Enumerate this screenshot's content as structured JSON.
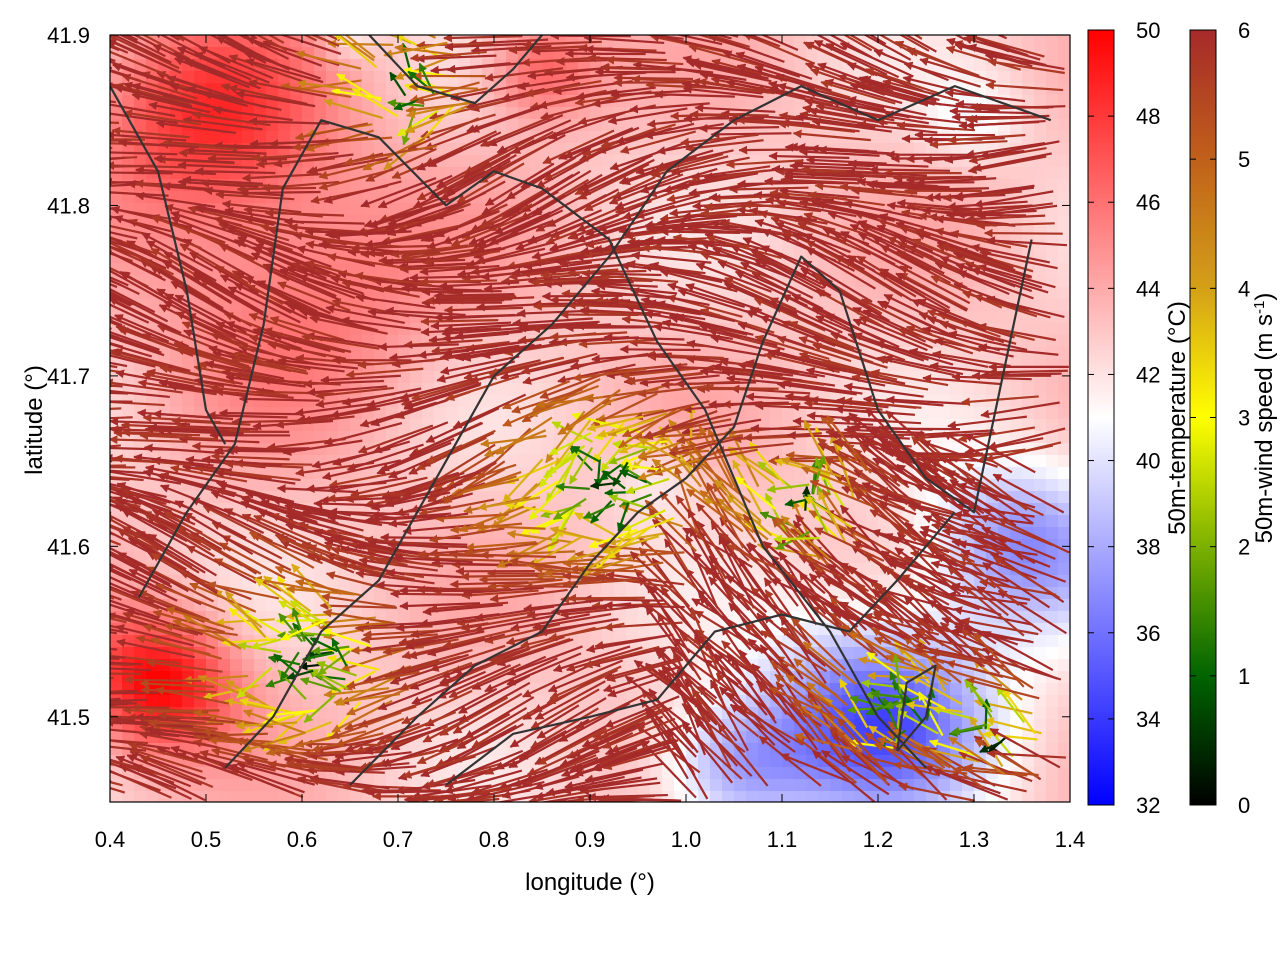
{
  "chart_data": {
    "type": "vector-field-heatmap",
    "xlabel": "longitude (°)",
    "ylabel": "latitude (°)",
    "xlim": [
      0.4,
      1.4
    ],
    "ylim": [
      41.45,
      41.9
    ],
    "xticks": [
      "0.4",
      "0.5",
      "0.6",
      "0.7",
      "0.8",
      "0.9",
      "1.0",
      "1.1",
      "1.2",
      "1.3",
      "1.4"
    ],
    "yticks": [
      "41.5",
      "41.6",
      "41.7",
      "41.8",
      "41.9"
    ],
    "colorbars": [
      {
        "label": "50m-temperature (°C)",
        "range": [
          32,
          50
        ],
        "ticks": [
          "32",
          "34",
          "36",
          "38",
          "40",
          "42",
          "44",
          "46",
          "48",
          "50"
        ],
        "colors": [
          "#0000ff",
          "#ffffff",
          "#ff0000"
        ]
      },
      {
        "label_main": "50m-wind speed (m s",
        "label_sup": "-1",
        "label_end": ")",
        "range": [
          0,
          6
        ],
        "ticks": [
          "0",
          "1",
          "2",
          "3",
          "4",
          "5",
          "6"
        ],
        "colors": [
          "#000000",
          "#006400",
          "#7cb000",
          "#ffff00",
          "#d4a017",
          "#c0601a",
          "#a52a2a"
        ]
      }
    ],
    "temperature_field": {
      "base": 43,
      "anomalies": [
        {
          "lon": 0.45,
          "lat": 41.52,
          "dT": 7,
          "r": 0.08
        },
        {
          "lon": 0.5,
          "lat": 41.85,
          "dT": 5,
          "r": 0.12
        },
        {
          "lon": 0.6,
          "lat": 41.75,
          "dT": 3,
          "r": 0.15
        },
        {
          "lon": 0.85,
          "lat": 41.88,
          "dT": 4,
          "r": 0.06
        },
        {
          "lon": 1.2,
          "lat": 41.5,
          "dT": -8,
          "r": 0.12
        },
        {
          "lon": 1.05,
          "lat": 41.47,
          "dT": -5,
          "r": 0.08
        },
        {
          "lon": 1.35,
          "lat": 41.6,
          "dT": -6,
          "r": 0.1
        },
        {
          "lon": 0.97,
          "lat": 41.64,
          "dT": -1.5,
          "r": 0.05
        },
        {
          "lon": 0.65,
          "lat": 41.9,
          "dT": -2,
          "r": 0.03
        },
        {
          "lon": 1.3,
          "lat": 41.85,
          "dT": -2,
          "r": 0.05
        }
      ]
    },
    "wind_field": {
      "mean_speed": 6,
      "prevailing_direction": "westward",
      "calm_zones": [
        {
          "lon": 0.62,
          "lat": 41.53,
          "r": 0.07
        },
        {
          "lon": 0.93,
          "lat": 41.64,
          "r": 0.08
        },
        {
          "lon": 1.13,
          "lat": 41.62,
          "r": 0.05
        },
        {
          "lon": 1.23,
          "lat": 41.5,
          "r": 0.05
        },
        {
          "lon": 0.72,
          "lat": 41.87,
          "r": 0.05
        },
        {
          "lon": 1.33,
          "lat": 41.49,
          "r": 0.04
        }
      ]
    },
    "contours": [
      [
        [
          0.43,
          41.57
        ],
        [
          0.48,
          41.62
        ],
        [
          0.53,
          41.66
        ],
        [
          0.56,
          41.73
        ],
        [
          0.58,
          41.81
        ],
        [
          0.62,
          41.85
        ],
        [
          0.68,
          41.84
        ],
        [
          0.75,
          41.8
        ],
        [
          0.8,
          41.82
        ],
        [
          0.85,
          41.81
        ],
        [
          0.92,
          41.78
        ],
        [
          0.97,
          41.72
        ],
        [
          1.02,
          41.68
        ],
        [
          1.08,
          41.6
        ],
        [
          1.15,
          41.55
        ],
        [
          1.2,
          41.5
        ],
        [
          1.25,
          41.47
        ]
      ],
      [
        [
          0.52,
          41.47
        ],
        [
          0.57,
          41.5
        ],
        [
          0.62,
          41.55
        ],
        [
          0.68,
          41.58
        ],
        [
          0.72,
          41.62
        ],
        [
          0.76,
          41.66
        ],
        [
          0.8,
          41.7
        ],
        [
          0.86,
          41.73
        ],
        [
          0.92,
          41.77
        ],
        [
          0.98,
          41.82
        ],
        [
          1.05,
          41.85
        ],
        [
          1.12,
          41.87
        ],
        [
          1.2,
          41.85
        ],
        [
          1.28,
          41.87
        ],
        [
          1.38,
          41.85
        ]
      ],
      [
        [
          0.65,
          41.46
        ],
        [
          0.72,
          41.5
        ],
        [
          0.78,
          41.53
        ],
        [
          0.85,
          41.55
        ],
        [
          0.9,
          41.59
        ],
        [
          0.95,
          41.62
        ],
        [
          1.0,
          41.64
        ],
        [
          1.05,
          41.67
        ],
        [
          1.08,
          41.72
        ],
        [
          1.12,
          41.77
        ],
        [
          1.16,
          41.75
        ],
        [
          1.2,
          41.68
        ],
        [
          1.25,
          41.64
        ],
        [
          1.3,
          41.62
        ],
        [
          1.33,
          41.7
        ],
        [
          1.36,
          41.78
        ]
      ],
      [
        [
          0.75,
          41.46
        ],
        [
          0.82,
          41.49
        ],
        [
          0.9,
          41.5
        ],
        [
          0.97,
          41.51
        ],
        [
          1.03,
          41.55
        ],
        [
          1.1,
          41.56
        ],
        [
          1.17,
          41.55
        ],
        [
          1.22,
          41.58
        ],
        [
          1.28,
          41.62
        ]
      ],
      [
        [
          0.4,
          41.87
        ],
        [
          0.45,
          41.82
        ],
        [
          0.48,
          41.75
        ],
        [
          0.5,
          41.68
        ],
        [
          0.52,
          41.66
        ]
      ],
      [
        [
          1.22,
          41.48
        ],
        [
          1.25,
          41.5
        ],
        [
          1.26,
          41.53
        ],
        [
          1.23,
          41.52
        ],
        [
          1.22,
          41.48
        ]
      ],
      [
        [
          0.67,
          41.9
        ],
        [
          0.72,
          41.87
        ],
        [
          0.78,
          41.86
        ],
        [
          0.82,
          41.88
        ],
        [
          0.85,
          41.9
        ]
      ]
    ]
  }
}
